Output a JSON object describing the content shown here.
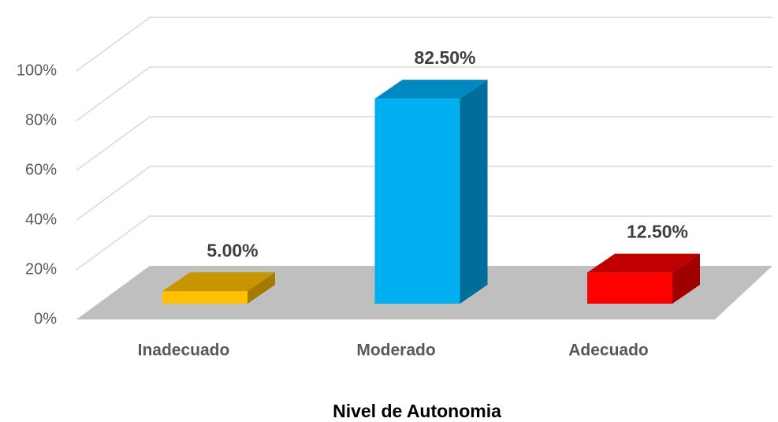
{
  "chart_data": {
    "type": "bar3d",
    "categories": [
      "Inadecuado",
      "Moderado",
      "Adecuado"
    ],
    "values": [
      5,
      82.5,
      12.5
    ],
    "value_labels": [
      "5.00%",
      "82.50%",
      "12.50%"
    ],
    "colors": [
      "#FFC000",
      "#00B0F0",
      "#FF0000"
    ],
    "top_colors": [
      "#C79500",
      "#0088C0",
      "#C00000"
    ],
    "side_colors": [
      "#A57A00",
      "#006E9A",
      "#A00000"
    ],
    "x_label": "Nivel de Autonomia",
    "ylim": [
      0,
      100
    ],
    "yticks": [
      {
        "value": 0,
        "label": "0%"
      },
      {
        "value": 20,
        "label": "20%"
      },
      {
        "value": 40,
        "label": "40%"
      },
      {
        "value": 60,
        "label": "60%"
      },
      {
        "value": 80,
        "label": "80%"
      },
      {
        "value": 100,
        "label": "100%"
      }
    ],
    "grid": true
  }
}
